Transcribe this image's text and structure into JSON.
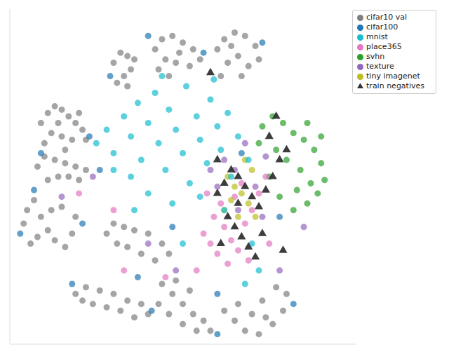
{
  "chart_data": {
    "type": "scatter",
    "xlim": [
      0,
      100
    ],
    "ylim": [
      0,
      100
    ],
    "tick_labels": false,
    "grid": false,
    "legend": "top-right",
    "series": [
      {
        "name": "cifar10 val",
        "color": "#7f7f7f",
        "marker": "circle",
        "values": [
          [
            9,
            66
          ],
          [
            11,
            69
          ],
          [
            13,
            71
          ],
          [
            15,
            70
          ],
          [
            17,
            68
          ],
          [
            19,
            66
          ],
          [
            21,
            64
          ],
          [
            12,
            63
          ],
          [
            15,
            62
          ],
          [
            18,
            61
          ],
          [
            10,
            60
          ],
          [
            14,
            66
          ],
          [
            20,
            69
          ],
          [
            22,
            61
          ],
          [
            16,
            58
          ],
          [
            30,
            84
          ],
          [
            32,
            87
          ],
          [
            34,
            86
          ],
          [
            35,
            82
          ],
          [
            33,
            80
          ],
          [
            31,
            78
          ],
          [
            34,
            77
          ],
          [
            36,
            85
          ],
          [
            42,
            88
          ],
          [
            44,
            91
          ],
          [
            47,
            92
          ],
          [
            50,
            90
          ],
          [
            53,
            88
          ],
          [
            55,
            85
          ],
          [
            52,
            83
          ],
          [
            48,
            84
          ],
          [
            45,
            85
          ],
          [
            43,
            82
          ],
          [
            49,
            87
          ],
          [
            46,
            80
          ],
          [
            60,
            88
          ],
          [
            62,
            91
          ],
          [
            65,
            93
          ],
          [
            68,
            92
          ],
          [
            71,
            89
          ],
          [
            72,
            85
          ],
          [
            69,
            83
          ],
          [
            66,
            86
          ],
          [
            63,
            84
          ],
          [
            61,
            80
          ],
          [
            67,
            80
          ],
          [
            64,
            89
          ],
          [
            8,
            53
          ],
          [
            10,
            56
          ],
          [
            13,
            55
          ],
          [
            16,
            54
          ],
          [
            19,
            53
          ],
          [
            22,
            52
          ],
          [
            20,
            49
          ],
          [
            17,
            50
          ],
          [
            14,
            50
          ],
          [
            11,
            49
          ],
          [
            4,
            36
          ],
          [
            5,
            40
          ],
          [
            7,
            43
          ],
          [
            9,
            38
          ],
          [
            11,
            34
          ],
          [
            13,
            31
          ],
          [
            16,
            29
          ],
          [
            18,
            33
          ],
          [
            19,
            38
          ],
          [
            15,
            41
          ],
          [
            12,
            40
          ],
          [
            8,
            32
          ],
          [
            6,
            30
          ],
          [
            28,
            33
          ],
          [
            30,
            36
          ],
          [
            33,
            35
          ],
          [
            36,
            34
          ],
          [
            40,
            33
          ],
          [
            44,
            30
          ],
          [
            46,
            27
          ],
          [
            42,
            25
          ],
          [
            38,
            27
          ],
          [
            34,
            29
          ],
          [
            31,
            30
          ],
          [
            19,
            15
          ],
          [
            22,
            17
          ],
          [
            26,
            16
          ],
          [
            30,
            15
          ],
          [
            34,
            13
          ],
          [
            38,
            12
          ],
          [
            40,
            9
          ],
          [
            36,
            8
          ],
          [
            32,
            10
          ],
          [
            28,
            11
          ],
          [
            24,
            12
          ],
          [
            21,
            13
          ],
          [
            44,
            18
          ],
          [
            47,
            15
          ],
          [
            50,
            12
          ],
          [
            53,
            9
          ],
          [
            56,
            7
          ],
          [
            58,
            4
          ],
          [
            54,
            4
          ],
          [
            50,
            6
          ],
          [
            46,
            9
          ],
          [
            43,
            12
          ],
          [
            48,
            19
          ],
          [
            52,
            16
          ],
          [
            62,
            10
          ],
          [
            65,
            7
          ],
          [
            68,
            4
          ],
          [
            72,
            3
          ],
          [
            76,
            6
          ],
          [
            79,
            10
          ],
          [
            80,
            15
          ],
          [
            77,
            17
          ],
          [
            73,
            13
          ],
          [
            70,
            9
          ],
          [
            66,
            12
          ],
          [
            74,
            8
          ]
        ]
      },
      {
        "name": "cifar100",
        "color": "#1f77b4",
        "marker": "circle",
        "values": [
          [
            23,
            62
          ],
          [
            9,
            57
          ],
          [
            26,
            52
          ],
          [
            21,
            36
          ],
          [
            3,
            33
          ],
          [
            18,
            18
          ],
          [
            41,
            10
          ],
          [
            60,
            15
          ],
          [
            82,
            12
          ],
          [
            47,
            35
          ],
          [
            29,
            80
          ],
          [
            56,
            87
          ],
          [
            73,
            90
          ],
          [
            7,
            46
          ],
          [
            40,
            92
          ],
          [
            60,
            3
          ],
          [
            37,
            20
          ],
          [
            67,
            57
          ],
          [
            78,
            38
          ]
        ]
      },
      {
        "name": "svhn",
        "color": "#2ca02c",
        "marker": "circle",
        "values": [
          [
            73,
            65
          ],
          [
            76,
            68
          ],
          [
            79,
            66
          ],
          [
            82,
            63
          ],
          [
            85,
            61
          ],
          [
            88,
            58
          ],
          [
            90,
            54
          ],
          [
            91,
            49
          ],
          [
            89,
            45
          ],
          [
            86,
            42
          ],
          [
            82,
            40
          ],
          [
            78,
            44
          ],
          [
            75,
            50
          ],
          [
            80,
            55
          ],
          [
            84,
            52
          ],
          [
            87,
            48
          ],
          [
            77,
            58
          ],
          [
            83,
            46
          ],
          [
            72,
            60
          ],
          [
            86,
            66
          ],
          [
            90,
            62
          ]
        ]
      },
      {
        "name": "texture",
        "color": "#9467bd",
        "marker": "circle",
        "values": [
          [
            62,
            55
          ],
          [
            65,
            52
          ],
          [
            68,
            60
          ],
          [
            71,
            47
          ],
          [
            73,
            38
          ],
          [
            60,
            47
          ],
          [
            66,
            40
          ],
          [
            74,
            56
          ],
          [
            58,
            52
          ],
          [
            24,
            50
          ],
          [
            15,
            44
          ],
          [
            40,
            30
          ],
          [
            78,
            22
          ],
          [
            48,
            22
          ],
          [
            85,
            35
          ]
        ]
      },
      {
        "name": "place365",
        "color": "#e377c2",
        "marker": "circle",
        "values": [
          [
            56,
            33
          ],
          [
            58,
            30
          ],
          [
            60,
            27
          ],
          [
            62,
            35
          ],
          [
            64,
            31
          ],
          [
            66,
            28
          ],
          [
            63,
            24
          ],
          [
            59,
            38
          ],
          [
            68,
            36
          ],
          [
            70,
            40
          ],
          [
            72,
            45
          ],
          [
            74,
            50
          ],
          [
            67,
            48
          ],
          [
            57,
            45
          ],
          [
            61,
            42
          ],
          [
            65,
            44
          ],
          [
            54,
            22
          ],
          [
            69,
            25
          ],
          [
            30,
            40
          ],
          [
            20,
            45
          ],
          [
            33,
            22
          ],
          [
            45,
            20
          ],
          [
            75,
            30
          ]
        ]
      },
      {
        "name": "tiny imagenet",
        "color": "#bcbd22",
        "marker": "circle",
        "values": [
          [
            63,
            50
          ],
          [
            65,
            47
          ],
          [
            67,
            45
          ],
          [
            69,
            42
          ],
          [
            66,
            38
          ],
          [
            64,
            43
          ],
          [
            70,
            52
          ],
          [
            71,
            38
          ],
          [
            68,
            55
          ],
          [
            62,
            40
          ]
        ]
      },
      {
        "name": "mnist",
        "color": "#17becf",
        "marker": "circle",
        "values": [
          [
            25,
            60
          ],
          [
            28,
            64
          ],
          [
            30,
            57
          ],
          [
            33,
            68
          ],
          [
            35,
            62
          ],
          [
            37,
            72
          ],
          [
            38,
            55
          ],
          [
            40,
            66
          ],
          [
            42,
            75
          ],
          [
            43,
            60
          ],
          [
            45,
            52
          ],
          [
            46,
            70
          ],
          [
            48,
            64
          ],
          [
            50,
            57
          ],
          [
            51,
            77
          ],
          [
            52,
            48
          ],
          [
            54,
            68
          ],
          [
            55,
            61
          ],
          [
            57,
            54
          ],
          [
            58,
            73
          ],
          [
            60,
            65
          ],
          [
            61,
            58
          ],
          [
            63,
            69
          ],
          [
            64,
            50
          ],
          [
            35,
            50
          ],
          [
            40,
            45
          ],
          [
            47,
            42
          ],
          [
            55,
            44
          ],
          [
            30,
            52
          ],
          [
            44,
            80
          ],
          [
            59,
            79
          ],
          [
            66,
            62
          ],
          [
            62,
            40
          ],
          [
            69,
            55
          ],
          [
            70,
            30
          ],
          [
            72,
            22
          ],
          [
            68,
            18
          ],
          [
            50,
            30
          ],
          [
            36,
            40
          ]
        ]
      },
      {
        "name": "train negatives",
        "color": "#333333",
        "marker": "triangle",
        "values": [
          [
            60,
            45
          ],
          [
            62,
            48
          ],
          [
            64,
            52
          ],
          [
            66,
            50
          ],
          [
            68,
            47
          ],
          [
            70,
            44
          ],
          [
            72,
            41
          ],
          [
            74,
            46
          ],
          [
            76,
            50
          ],
          [
            78,
            55
          ],
          [
            80,
            58
          ],
          [
            63,
            38
          ],
          [
            65,
            35
          ],
          [
            67,
            32
          ],
          [
            69,
            29
          ],
          [
            71,
            26
          ],
          [
            73,
            33
          ],
          [
            61,
            30
          ],
          [
            75,
            62
          ],
          [
            77,
            68
          ],
          [
            79,
            28
          ],
          [
            66,
            42
          ],
          [
            60,
            55
          ],
          [
            58,
            81
          ]
        ]
      }
    ]
  }
}
